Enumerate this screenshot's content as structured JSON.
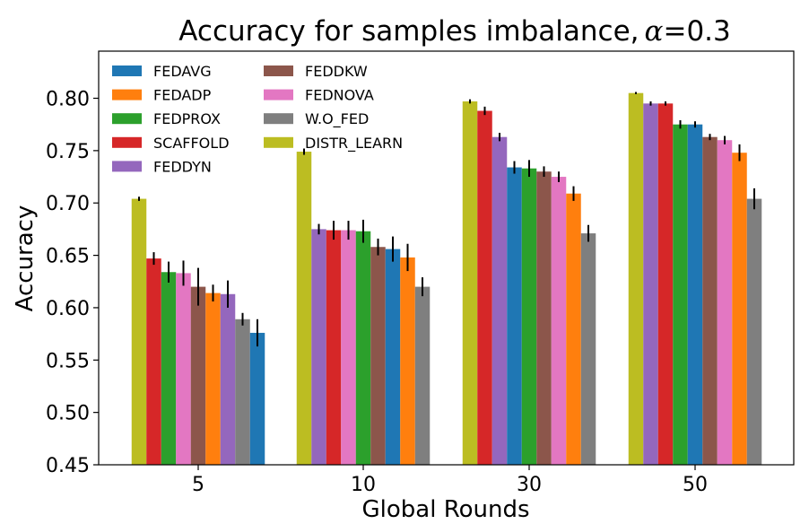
{
  "chart_data": {
    "type": "bar",
    "title": "Accuracy for samples imbalance, α=0.3",
    "title_prefix": "Accuracy for samples imbalance,",
    "title_symbol": "α",
    "title_suffix": "=0.3",
    "xlabel": "Global Rounds",
    "ylabel": "Accuracy",
    "ylim": [
      0.45,
      0.845
    ],
    "yticks": [
      "0.45",
      "0.50",
      "0.55",
      "0.60",
      "0.65",
      "0.70",
      "0.75",
      "0.80"
    ],
    "categories": [
      "5",
      "10",
      "30",
      "50"
    ],
    "legend_position": "upper-left",
    "series": [
      {
        "name": "FEDAVG",
        "color": "#1f77b4"
      },
      {
        "name": "FEDADP",
        "color": "#ff7f0e"
      },
      {
        "name": "FEDPROX",
        "color": "#2ca02c"
      },
      {
        "name": "SCAFFOLD",
        "color": "#d62728"
      },
      {
        "name": "FEDDYN",
        "color": "#9467bd"
      },
      {
        "name": "FEDDKW",
        "color": "#8c564b"
      },
      {
        "name": "FEDNOVA",
        "color": "#e377c2"
      },
      {
        "name": "W.O_FED",
        "color": "#7f7f7f"
      },
      {
        "name": "DISTR_LEARN",
        "color": "#bcbd22"
      }
    ],
    "groups": [
      {
        "category": "5",
        "bars": [
          {
            "series": "DISTR_LEARN",
            "value": 0.704,
            "err": 0.002
          },
          {
            "series": "SCAFFOLD",
            "value": 0.647,
            "err": 0.006
          },
          {
            "series": "FEDPROX",
            "value": 0.634,
            "err": 0.01
          },
          {
            "series": "FEDNOVA",
            "value": 0.633,
            "err": 0.012
          },
          {
            "series": "FEDDKW",
            "value": 0.62,
            "err": 0.018
          },
          {
            "series": "FEDADP",
            "value": 0.614,
            "err": 0.008
          },
          {
            "series": "FEDDYN",
            "value": 0.613,
            "err": 0.013
          },
          {
            "series": "W.O_FED",
            "value": 0.589,
            "err": 0.006
          },
          {
            "series": "FEDAVG",
            "value": 0.576,
            "err": 0.013
          }
        ]
      },
      {
        "category": "10",
        "bars": [
          {
            "series": "DISTR_LEARN",
            "value": 0.749,
            "err": 0.003
          },
          {
            "series": "FEDDYN",
            "value": 0.675,
            "err": 0.005
          },
          {
            "series": "SCAFFOLD",
            "value": 0.674,
            "err": 0.009
          },
          {
            "series": "FEDNOVA",
            "value": 0.674,
            "err": 0.009
          },
          {
            "series": "FEDPROX",
            "value": 0.673,
            "err": 0.011
          },
          {
            "series": "FEDDKW",
            "value": 0.658,
            "err": 0.008
          },
          {
            "series": "FEDAVG",
            "value": 0.656,
            "err": 0.012
          },
          {
            "series": "FEDADP",
            "value": 0.648,
            "err": 0.013
          },
          {
            "series": "W.O_FED",
            "value": 0.62,
            "err": 0.009
          }
        ]
      },
      {
        "category": "30",
        "bars": [
          {
            "series": "DISTR_LEARN",
            "value": 0.797,
            "err": 0.002
          },
          {
            "series": "SCAFFOLD",
            "value": 0.788,
            "err": 0.004
          },
          {
            "series": "FEDDYN",
            "value": 0.763,
            "err": 0.004
          },
          {
            "series": "FEDAVG",
            "value": 0.734,
            "err": 0.006
          },
          {
            "series": "FEDPROX",
            "value": 0.733,
            "err": 0.008
          },
          {
            "series": "FEDDKW",
            "value": 0.73,
            "err": 0.005
          },
          {
            "series": "FEDNOVA",
            "value": 0.725,
            "err": 0.005
          },
          {
            "series": "FEDADP",
            "value": 0.709,
            "err": 0.007
          },
          {
            "series": "W.O_FED",
            "value": 0.671,
            "err": 0.008
          }
        ]
      },
      {
        "category": "50",
        "bars": [
          {
            "series": "DISTR_LEARN",
            "value": 0.805,
            "err": 0.001
          },
          {
            "series": "FEDDYN",
            "value": 0.795,
            "err": 0.002
          },
          {
            "series": "SCAFFOLD",
            "value": 0.795,
            "err": 0.002
          },
          {
            "series": "FEDPROX",
            "value": 0.775,
            "err": 0.004
          },
          {
            "series": "FEDAVG",
            "value": 0.775,
            "err": 0.003
          },
          {
            "series": "FEDDKW",
            "value": 0.763,
            "err": 0.003
          },
          {
            "series": "FEDNOVA",
            "value": 0.76,
            "err": 0.004
          },
          {
            "series": "FEDADP",
            "value": 0.748,
            "err": 0.008
          },
          {
            "series": "W.O_FED",
            "value": 0.704,
            "err": 0.01
          }
        ]
      }
    ]
  }
}
